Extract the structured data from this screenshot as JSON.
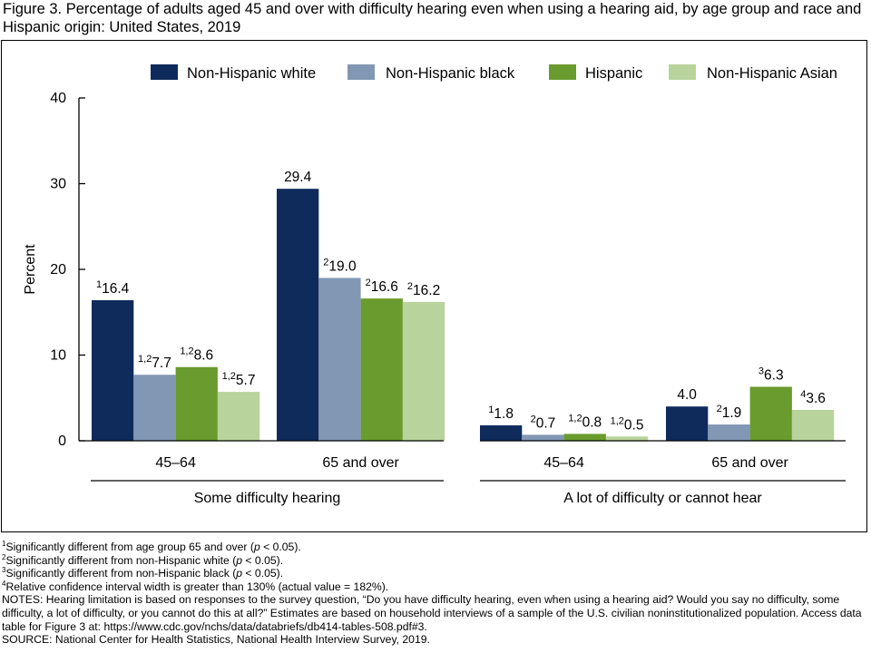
{
  "title": "Figure 3. Percentage of adults aged 45 and over with difficulty hearing even when using a hearing aid, by age group and race and Hispanic origin: United States, 2019",
  "colors": {
    "Non-Hispanic white": "#0f2b5b",
    "Non-Hispanic black": "#8297b4",
    "Hispanic": "#6a9b2e",
    "Non-Hispanic Asian": "#b8d39b"
  },
  "chart_data": {
    "type": "bar",
    "ylabel": "Percent",
    "ylim": [
      0,
      40
    ],
    "yticks": [
      "0",
      "10",
      "20",
      "30",
      "40"
    ],
    "legend_position": "top",
    "series": [
      {
        "name": "Non-Hispanic white",
        "values": [
          16.4,
          29.4,
          1.8,
          4.0
        ],
        "labels": [
          "16.4",
          "29.4",
          "1.8",
          "4.0"
        ],
        "superscripts": [
          "1",
          "",
          "1",
          ""
        ]
      },
      {
        "name": "Non-Hispanic black",
        "values": [
          7.7,
          19.0,
          0.7,
          1.9
        ],
        "labels": [
          "7.7",
          "19.0",
          "0.7",
          "1.9"
        ],
        "superscripts": [
          "1,2",
          "2",
          "2",
          "2"
        ]
      },
      {
        "name": "Hispanic",
        "values": [
          8.6,
          16.6,
          0.8,
          6.3
        ],
        "labels": [
          "8.6",
          "16.6",
          "0.8",
          "6.3"
        ],
        "superscripts": [
          "1,2",
          "2",
          "1,2",
          "3"
        ]
      },
      {
        "name": "Non-Hispanic Asian",
        "values": [
          5.7,
          16.2,
          0.5,
          3.6
        ],
        "labels": [
          "5.7",
          "16.2",
          "0.5",
          "3.6"
        ],
        "superscripts": [
          "1,2",
          "2",
          "1,2",
          "4"
        ]
      }
    ],
    "categories": [
      "45–64",
      "65 and over",
      "45–64",
      "65 and over"
    ],
    "groups": [
      {
        "label": "Some difficulty hearing",
        "categories": [
          0,
          1
        ]
      },
      {
        "label": "A lot of difficulty or cannot hear",
        "categories": [
          2,
          3
        ]
      }
    ]
  },
  "footnotes": [
    {
      "sup": "1",
      "text": "Significantly different from age group 65 and over (",
      "p": "p",
      "tail": " < 0.05)."
    },
    {
      "sup": "2",
      "text": "Significantly different from non-Hispanic white (",
      "p": "p",
      "tail": " < 0.05)."
    },
    {
      "sup": "3",
      "text": "Significantly different from non-Hispanic black (",
      "p": "p",
      "tail": " < 0.05)."
    },
    {
      "sup": "4",
      "text": "Relative confidence interval width is greater than 130% (actual value = 182%).",
      "p": "",
      "tail": ""
    }
  ],
  "notes": "NOTES: Hearing limitation is based on responses to the survey question, “Do you have difficulty hearing, even when using a hearing aid? Would you say no difficulty, some difficulty, a lot of difficulty, or you cannot do this at all?” Estimates are based on household interviews of a sample of the U.S. civilian noninstitutionalized population. Access data table for Figure 3 at: https://www.cdc.gov/nchs/data/databriefs/db414-tables-508.pdf#3.",
  "source": "SOURCE: National Center for Health Statistics, National Health Interview Survey, 2019."
}
